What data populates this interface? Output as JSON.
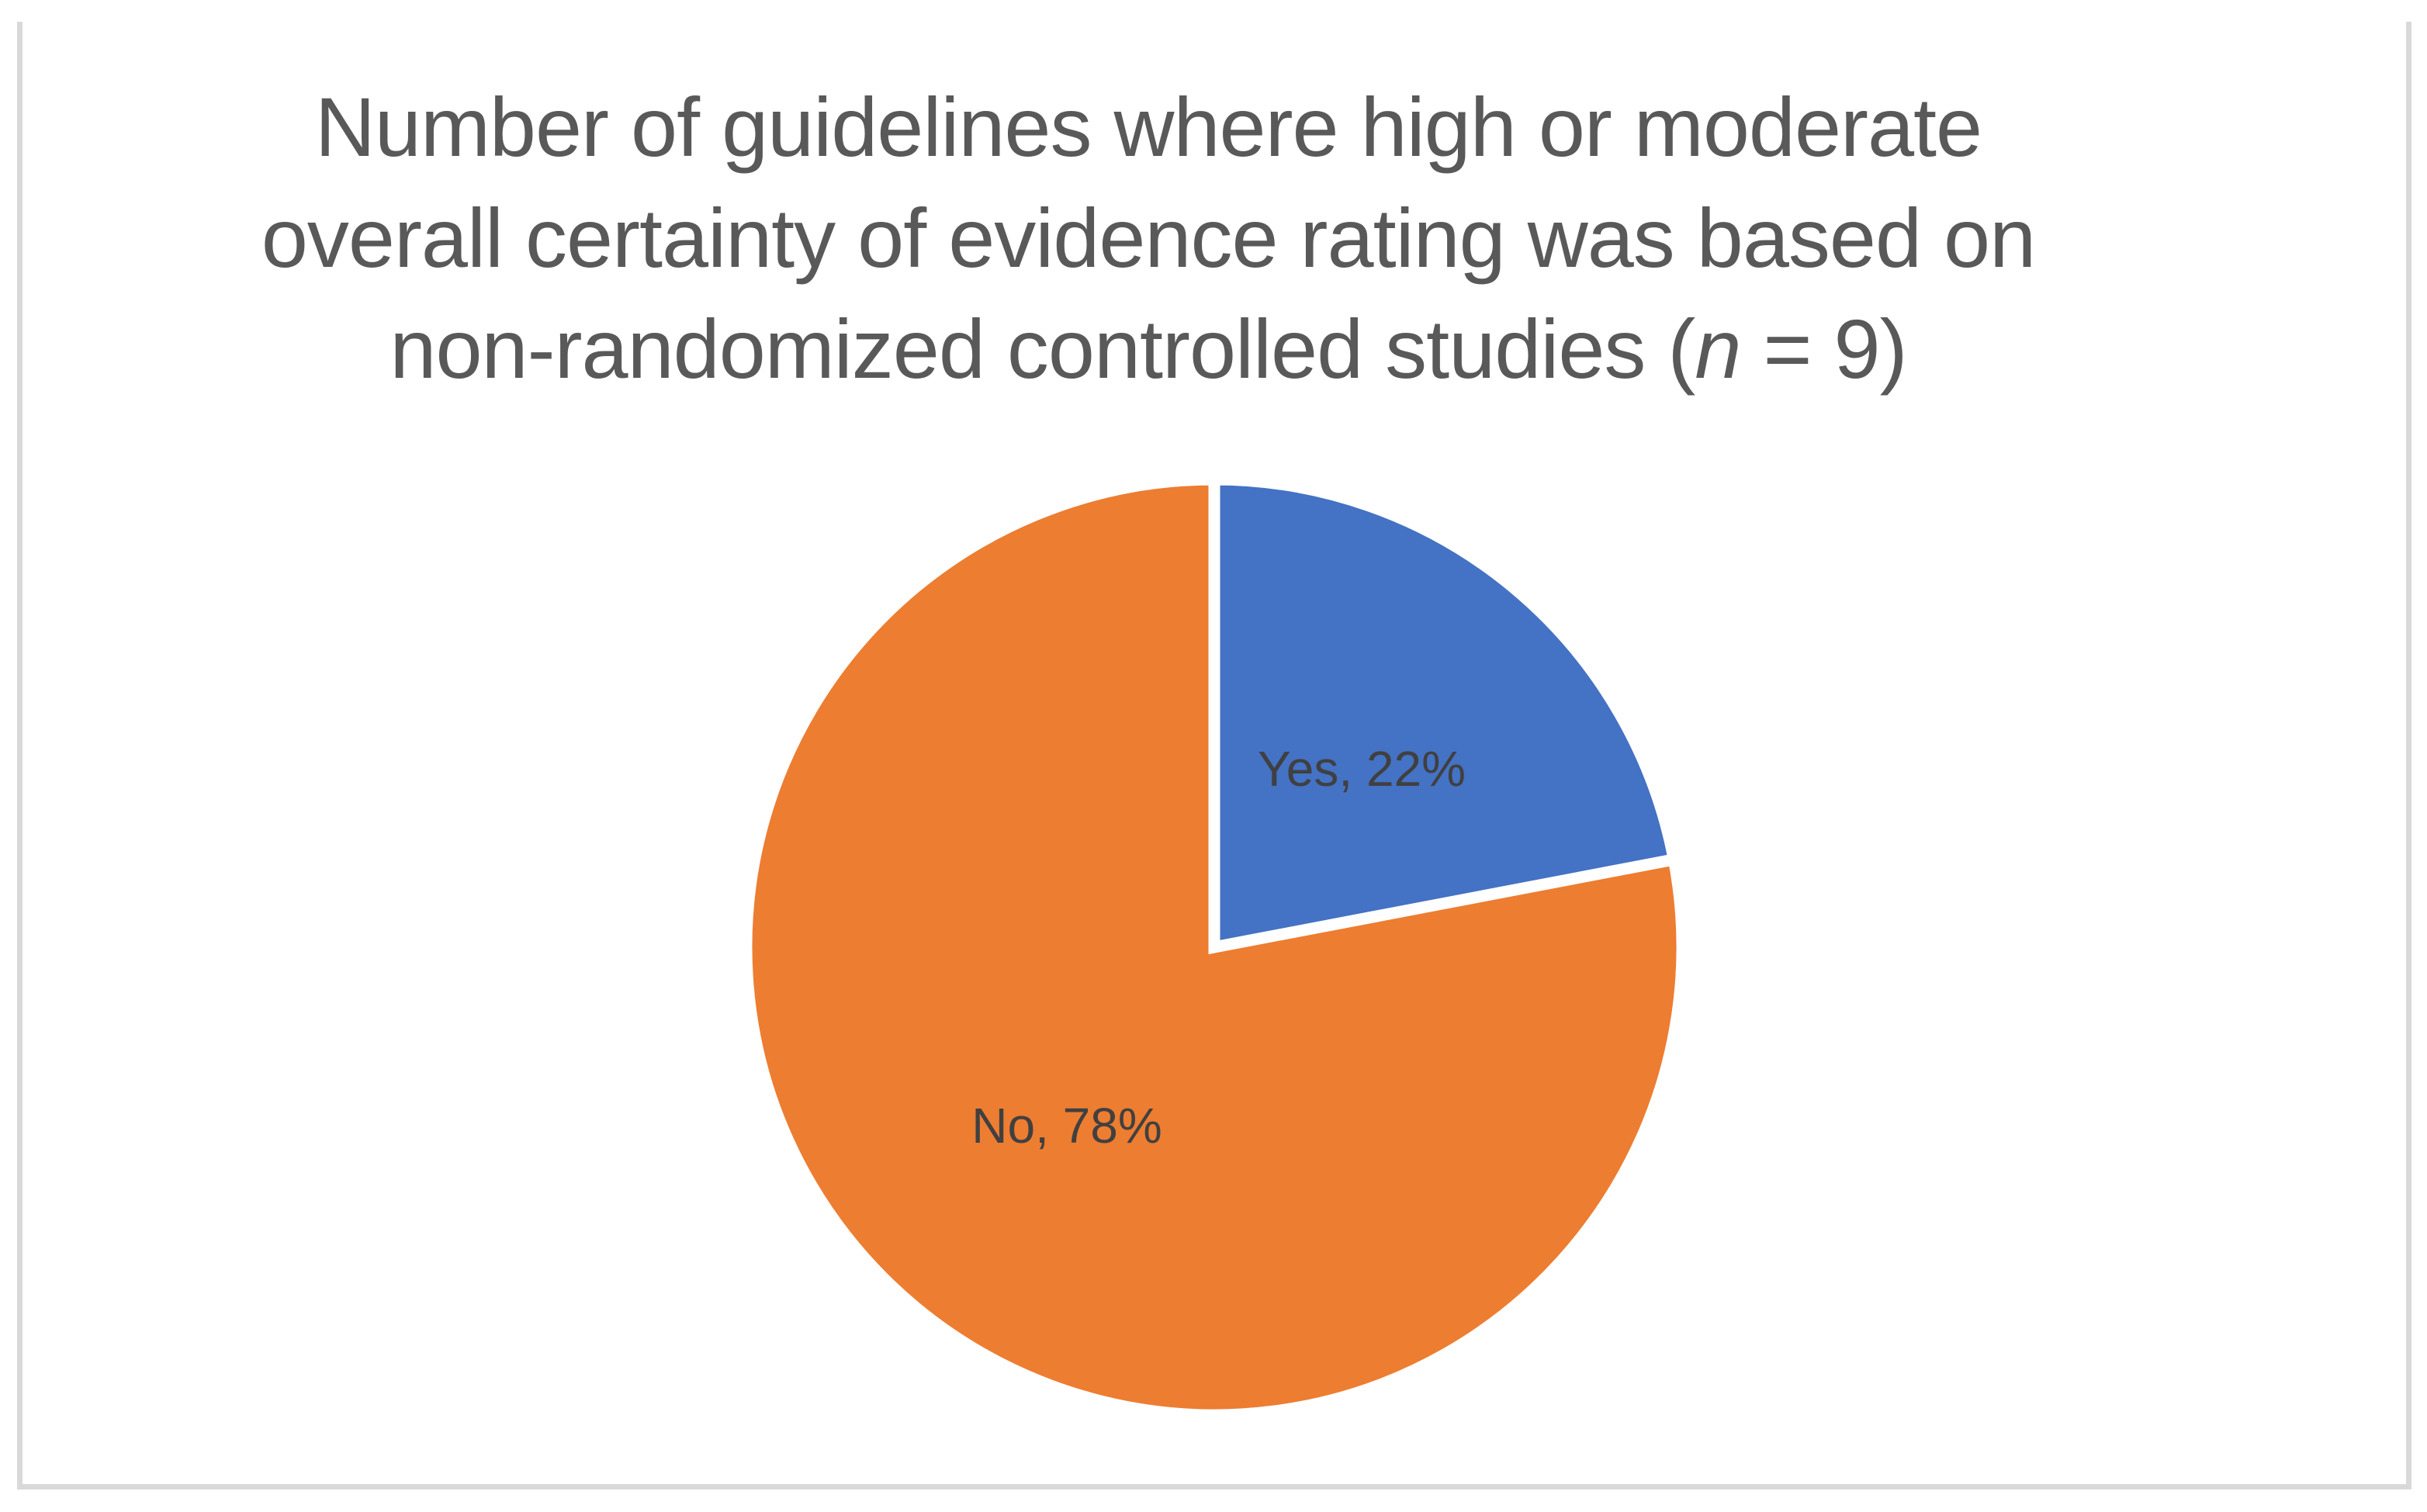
{
  "figure": {
    "title": {
      "line1": "Number of guidelines where high or moderate",
      "line2": "overall certainty of evidence rating was based on",
      "line3_pre": "non-randomized controlled studies (",
      "line3_italic": "n",
      "line3_post": " = 9)"
    },
    "frame_border_color": "#d9d9d9",
    "title_color": "#595959"
  },
  "chart_data": {
    "type": "pie",
    "title": "Number of guidelines where high or moderate overall certainty of evidence rating was based on non-randomized controlled studies (n = 9)",
    "n_total": 9,
    "start_angle_deg": 0,
    "direction": "clockwise",
    "legend_position": "none",
    "slice_border_color": "#ffffff",
    "data_label_color": "#404040",
    "slices": [
      {
        "label": "Yes",
        "value_pct": 22,
        "color": "#4472C4",
        "data_label": "Yes, 22%"
      },
      {
        "label": "No",
        "value_pct": 78,
        "color": "#ED7D31",
        "data_label": "No, 78%"
      }
    ]
  }
}
